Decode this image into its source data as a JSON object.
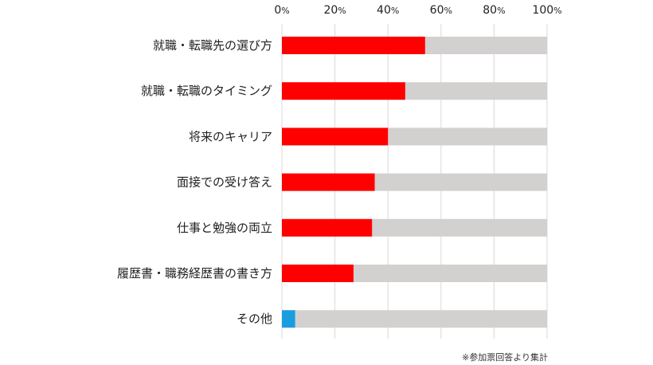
{
  "chart_data": {
    "type": "bar",
    "orientation": "horizontal",
    "stacked_to_100": true,
    "xlim": [
      0,
      100
    ],
    "ticks": [
      {
        "value": 0,
        "num": "0",
        "unit": "%"
      },
      {
        "value": 20,
        "num": "20",
        "unit": "%"
      },
      {
        "value": 40,
        "num": "40",
        "unit": "%"
      },
      {
        "value": 60,
        "num": "60",
        "unit": "%"
      },
      {
        "value": 80,
        "num": "80",
        "unit": "%"
      },
      {
        "value": 100,
        "num": "100",
        "unit": "%"
      }
    ],
    "categories": [
      "就職・転職先の選び方",
      "就職・転職のタイミング",
      "将来のキャリア",
      "面接での受け答え",
      "仕事と勉強の両立",
      "履歴書・職務経歴書の書き方",
      "その他"
    ],
    "values": [
      54,
      46.5,
      40,
      35,
      34,
      27,
      5
    ],
    "bar_colors": [
      "#ff0000",
      "#ff0000",
      "#ff0000",
      "#ff0000",
      "#ff0000",
      "#ff0000",
      "#1a9de0"
    ],
    "remainder_color": "#d3d0d0",
    "grid": true,
    "grid_color": "#d9d9d9"
  },
  "note": "※参加票回答より集計"
}
